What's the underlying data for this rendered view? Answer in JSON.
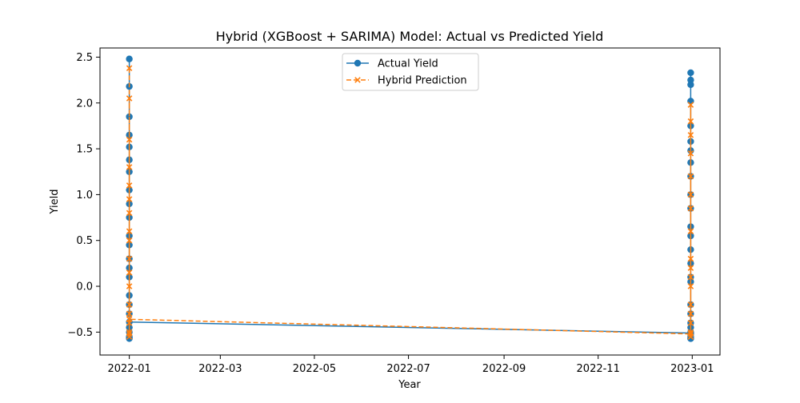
{
  "chart_data": {
    "type": "line",
    "title": "Hybrid (XGBoost + SARIMA) Model: Actual vs Predicted Yield",
    "xlabel": "Year",
    "ylabel": "Yield",
    "x_ticks": [
      "2022-01",
      "2022-03",
      "2022-05",
      "2022-07",
      "2022-09",
      "2022-11",
      "2023-01"
    ],
    "y_ticks": [
      "−0.5",
      "0.0",
      "0.5",
      "1.0",
      "1.5",
      "2.0",
      "2.5"
    ],
    "xlim": [
      "2021-12-13",
      "2023-01-19"
    ],
    "ylim": [
      -0.75,
      2.6
    ],
    "grid": false,
    "legend_position": "top-center",
    "colors": {
      "actual": "#1f77b4",
      "prediction": "#ff7f0e"
    },
    "series": [
      {
        "name": "Actual Yield",
        "style": "solid",
        "marker": "circle",
        "points": [
          {
            "x": "2022-01-01",
            "y": 2.48
          },
          {
            "x": "2022-01-01",
            "y": -0.57
          },
          {
            "x": "2022-01-01",
            "y": 2.18
          },
          {
            "x": "2022-01-01",
            "y": -0.5
          },
          {
            "x": "2022-01-01",
            "y": 1.85
          },
          {
            "x": "2022-01-01",
            "y": -0.55
          },
          {
            "x": "2022-01-01",
            "y": 1.65
          },
          {
            "x": "2022-01-01",
            "y": -0.3
          },
          {
            "x": "2022-01-01",
            "y": 1.52
          },
          {
            "x": "2022-01-01",
            "y": 0.1
          },
          {
            "x": "2022-01-01",
            "y": 1.38
          },
          {
            "x": "2022-01-01",
            "y": -0.45
          },
          {
            "x": "2022-01-01",
            "y": 1.25
          },
          {
            "x": "2022-01-01",
            "y": 0.3
          },
          {
            "x": "2022-01-01",
            "y": 1.05
          },
          {
            "x": "2022-01-01",
            "y": -0.2
          },
          {
            "x": "2022-01-01",
            "y": 0.9
          },
          {
            "x": "2022-01-01",
            "y": 0.55
          },
          {
            "x": "2022-01-01",
            "y": 0.75
          },
          {
            "x": "2022-01-01",
            "y": -0.56
          },
          {
            "x": "2022-01-01",
            "y": 0.45
          },
          {
            "x": "2022-01-01",
            "y": 0.2
          },
          {
            "x": "2022-01-01",
            "y": -0.1
          },
          {
            "x": "2022-01-01",
            "y": -0.39
          },
          {
            "x": "2022-12-31",
            "y": -0.51
          },
          {
            "x": "2022-12-31",
            "y": 2.33
          },
          {
            "x": "2022-12-31",
            "y": -0.57
          },
          {
            "x": "2022-12-31",
            "y": 2.25
          },
          {
            "x": "2022-12-31",
            "y": -0.45
          },
          {
            "x": "2022-12-31",
            "y": 2.2
          },
          {
            "x": "2022-12-31",
            "y": -0.3
          },
          {
            "x": "2022-12-31",
            "y": 2.02
          },
          {
            "x": "2022-12-31",
            "y": -0.52
          },
          {
            "x": "2022-12-31",
            "y": 1.75
          },
          {
            "x": "2022-12-31",
            "y": 0.05
          },
          {
            "x": "2022-12-31",
            "y": 1.58
          },
          {
            "x": "2022-12-31",
            "y": -0.2
          },
          {
            "x": "2022-12-31",
            "y": 1.48
          },
          {
            "x": "2022-12-31",
            "y": 0.4
          },
          {
            "x": "2022-12-31",
            "y": 1.35
          },
          {
            "x": "2022-12-31",
            "y": -0.55
          },
          {
            "x": "2022-12-31",
            "y": 1.2
          },
          {
            "x": "2022-12-31",
            "y": 0.65
          },
          {
            "x": "2022-12-31",
            "y": 1.0
          },
          {
            "x": "2022-12-31",
            "y": -0.4
          },
          {
            "x": "2022-12-31",
            "y": 0.85
          },
          {
            "x": "2022-12-31",
            "y": 0.25
          },
          {
            "x": "2022-12-31",
            "y": 0.55
          },
          {
            "x": "2022-12-31",
            "y": -0.57
          },
          {
            "x": "2022-12-31",
            "y": 0.1
          },
          {
            "x": "2022-12-31",
            "y": -0.5
          }
        ]
      },
      {
        "name": "Hybrid Prediction",
        "style": "dashed",
        "marker": "x",
        "points": [
          {
            "x": "2022-01-01",
            "y": 2.38
          },
          {
            "x": "2022-01-01",
            "y": -0.55
          },
          {
            "x": "2022-01-01",
            "y": 2.05
          },
          {
            "x": "2022-01-01",
            "y": -0.5
          },
          {
            "x": "2022-01-01",
            "y": 1.6
          },
          {
            "x": "2022-01-01",
            "y": -0.4
          },
          {
            "x": "2022-01-01",
            "y": 1.3
          },
          {
            "x": "2022-01-01",
            "y": 0.0
          },
          {
            "x": "2022-01-01",
            "y": 1.1
          },
          {
            "x": "2022-01-01",
            "y": -0.3
          },
          {
            "x": "2022-01-01",
            "y": 0.95
          },
          {
            "x": "2022-01-01",
            "y": 0.5
          },
          {
            "x": "2022-01-01",
            "y": 0.8
          },
          {
            "x": "2022-01-01",
            "y": -0.52
          },
          {
            "x": "2022-01-01",
            "y": 0.6
          },
          {
            "x": "2022-01-01",
            "y": 0.15
          },
          {
            "x": "2022-01-01",
            "y": 0.3
          },
          {
            "x": "2022-01-01",
            "y": -0.2
          },
          {
            "x": "2022-01-01",
            "y": -0.36
          },
          {
            "x": "2022-12-31",
            "y": -0.52
          },
          {
            "x": "2022-12-31",
            "y": 1.98
          },
          {
            "x": "2022-12-31",
            "y": -0.55
          },
          {
            "x": "2022-12-31",
            "y": 1.8
          },
          {
            "x": "2022-12-31",
            "y": -0.4
          },
          {
            "x": "2022-12-31",
            "y": 1.65
          },
          {
            "x": "2022-12-31",
            "y": -0.2
          },
          {
            "x": "2022-12-31",
            "y": 1.45
          },
          {
            "x": "2022-12-31",
            "y": 0.1
          },
          {
            "x": "2022-12-31",
            "y": 1.2
          },
          {
            "x": "2022-12-31",
            "y": -0.5
          },
          {
            "x": "2022-12-31",
            "y": 1.0
          },
          {
            "x": "2022-12-31",
            "y": 0.3
          },
          {
            "x": "2022-12-31",
            "y": 0.85
          },
          {
            "x": "2022-12-31",
            "y": -0.3
          },
          {
            "x": "2022-12-31",
            "y": 0.6
          },
          {
            "x": "2022-12-31",
            "y": 0.2
          },
          {
            "x": "2022-12-31",
            "y": -0.55
          },
          {
            "x": "2022-12-31",
            "y": 0.0
          },
          {
            "x": "2022-12-31",
            "y": -0.52
          }
        ]
      }
    ]
  }
}
